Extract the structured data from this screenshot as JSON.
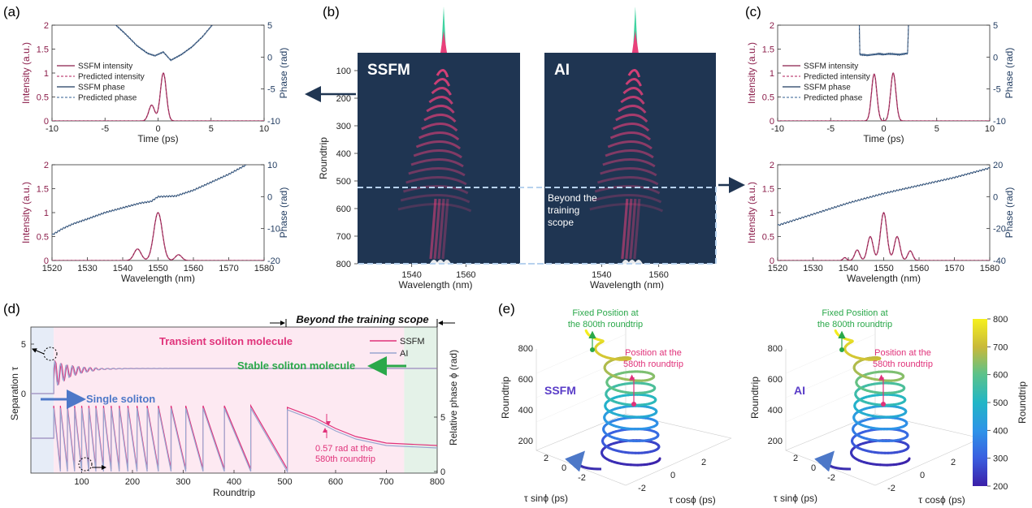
{
  "panel_labels": {
    "a": "(a)",
    "b": "(b)",
    "c": "(c)",
    "d": "(d)",
    "e": "(e)"
  },
  "colors": {
    "intensity": "#8b1d4a",
    "phase": "#1f3a5f",
    "ssfm": "#e0327a",
    "ai": "#9aa6d0",
    "heatmap_bg": "#1f3552",
    "pulse": "#e8407a",
    "dash": "#b7d2ee",
    "pink_bg": "#fde9f2",
    "blue_bg": "#e6ecf7",
    "green_bg": "#e4f2e8",
    "green": "#2aa84a",
    "arrow": "#1f3552"
  },
  "chart_data": [
    {
      "id": "a-top",
      "type": "line",
      "xlabel": "Time (ps)",
      "ylabel": "Intensity (a.u.)",
      "y2label": "Phase (rad)",
      "xlim": [
        -10,
        10
      ],
      "ylim": [
        0,
        2
      ],
      "y2lim": [
        -10,
        5
      ],
      "xticks": [
        "-10",
        "-5",
        "0",
        "5",
        "10"
      ],
      "yticks": [
        "0",
        "0.5",
        "1",
        "1.5",
        "2"
      ],
      "y2ticks": [
        "-10",
        "-5",
        "0",
        "5"
      ],
      "legend": [
        "SSFM intensity",
        "Predicted intensity",
        "SSFM phase",
        "Predicted phase"
      ],
      "pulses": [
        {
          "center": -0.6,
          "amp": 0.33,
          "width": 0.28
        },
        {
          "center": 0.5,
          "amp": 1.0,
          "width": 0.28
        }
      ],
      "phase_curve": [
        [
          -4.1,
          5.2
        ],
        [
          -3,
          3.5
        ],
        [
          -2,
          1.8
        ],
        [
          -1,
          0.6
        ],
        [
          -0.3,
          0.2
        ],
        [
          0.5,
          0.8
        ],
        [
          1.2,
          -0.5
        ],
        [
          2.2,
          0.4
        ],
        [
          3.2,
          1.6
        ],
        [
          4.2,
          3.2
        ],
        [
          5.2,
          5.2
        ]
      ]
    },
    {
      "id": "a-bottom",
      "type": "line",
      "xlabel": "Wavelength (nm)",
      "ylabel": "Intensity (a.u.)",
      "y2label": "Phase (rad)",
      "xlim": [
        1520,
        1580
      ],
      "ylim": [
        0,
        2
      ],
      "y2lim": [
        -20,
        10
      ],
      "xticks": [
        "1520",
        "1530",
        "1540",
        "1550",
        "1560",
        "1570",
        "1580"
      ],
      "yticks": [
        "0",
        "0.5",
        "1",
        "1.5",
        "2"
      ],
      "y2ticks": [
        "-20",
        "-10",
        "0",
        "10"
      ],
      "spectrum": [
        {
          "center": 1550,
          "amp": 1.0,
          "width": 1.2
        },
        {
          "center": 1544.2,
          "amp": 0.24,
          "width": 1.0
        },
        {
          "center": 1555.8,
          "amp": 0.12,
          "width": 0.9
        }
      ],
      "phase_curve": [
        [
          1520,
          -12
        ],
        [
          1523,
          -10
        ],
        [
          1526,
          -8.5
        ],
        [
          1530,
          -7
        ],
        [
          1535,
          -5
        ],
        [
          1540,
          -3.5
        ],
        [
          1545,
          -2
        ],
        [
          1548,
          -1.5
        ],
        [
          1550,
          0
        ],
        [
          1555,
          0.2
        ],
        [
          1560,
          2
        ],
        [
          1565,
          4.5
        ],
        [
          1570,
          7
        ],
        [
          1575,
          10
        ]
      ]
    },
    {
      "id": "b",
      "type": "heatmap",
      "ylabel": "Roundtrip",
      "xlabel": "Wavelength (nm)",
      "yticks": [
        "100",
        "200",
        "300",
        "400",
        "500",
        "600",
        "700",
        "800"
      ],
      "xticks": [
        "1540",
        "1560"
      ],
      "panels": [
        "SSFM",
        "AI"
      ],
      "annotation": [
        "Beyond the",
        "training",
        "scope"
      ],
      "ylim": [
        0,
        800
      ],
      "xlim": [
        1520,
        1580
      ]
    },
    {
      "id": "c-top",
      "type": "line",
      "xlabel": "Time (ps)",
      "ylabel": "Intensity (a.u.)",
      "y2label": "Phase (rad)",
      "xlim": [
        -10,
        10
      ],
      "ylim": [
        0,
        2
      ],
      "y2lim": [
        -10,
        5
      ],
      "xticks": [
        "-10",
        "-5",
        "0",
        "5",
        "10"
      ],
      "yticks": [
        "0",
        "0.5",
        "1",
        "1.5",
        "2"
      ],
      "y2ticks": [
        "-10",
        "-5",
        "0",
        "5"
      ],
      "legend": [
        "SSFM intensity",
        "Predicted intensity",
        "SSFM phase",
        "Predicted phase"
      ],
      "pulses": [
        {
          "center": -0.9,
          "amp": 0.98,
          "width": 0.25
        },
        {
          "center": 0.9,
          "amp": 1.0,
          "width": 0.25
        }
      ],
      "phase_curve": [
        [
          -2.3,
          5.5
        ],
        [
          -2.25,
          0.4
        ],
        [
          -1.5,
          0.3
        ],
        [
          -0.5,
          0.5
        ],
        [
          0,
          0.4
        ],
        [
          0.5,
          0.5
        ],
        [
          1.5,
          0.4
        ],
        [
          2.25,
          0.6
        ],
        [
          2.35,
          5.5
        ]
      ]
    },
    {
      "id": "c-bottom",
      "type": "line",
      "xlabel": "Wavelength (nm)",
      "ylabel": "Intensity (a.u.)",
      "y2label": "Phase (rad)",
      "xlim": [
        1520,
        1580
      ],
      "ylim": [
        0,
        2
      ],
      "y2lim": [
        -40,
        20
      ],
      "xticks": [
        "1520",
        "1530",
        "1540",
        "1550",
        "1560",
        "1570",
        "1580"
      ],
      "yticks": [
        "0",
        "0.5",
        "1",
        "1.5",
        "2"
      ],
      "y2ticks": [
        "-40",
        "-20",
        "0",
        "20"
      ],
      "spectrum": [
        {
          "center": 1550,
          "amp": 1.0,
          "width": 0.9
        },
        {
          "center": 1546.2,
          "amp": 0.5,
          "width": 0.8
        },
        {
          "center": 1553.8,
          "amp": 0.5,
          "width": 0.8
        },
        {
          "center": 1542.5,
          "amp": 0.22,
          "width": 0.7
        },
        {
          "center": 1557.5,
          "amp": 0.2,
          "width": 0.7
        },
        {
          "center": 1539,
          "amp": 0.06,
          "width": 0.5
        }
      ],
      "phase_curve": [
        [
          1520,
          -18
        ],
        [
          1530,
          -11
        ],
        [
          1540,
          -4
        ],
        [
          1550,
          2
        ],
        [
          1560,
          7
        ],
        [
          1570,
          12
        ],
        [
          1580,
          18
        ]
      ]
    },
    {
      "id": "d",
      "type": "line",
      "xlabel": "Roundtrip",
      "ylabel": "Separation τ",
      "y2label": "Relative phase ϕ (rad)",
      "xlim": [
        0,
        800
      ],
      "xticks": [
        "100",
        "200",
        "300",
        "400",
        "500",
        "600",
        "700",
        "800"
      ],
      "yticks": [
        "0",
        "5"
      ],
      "y2ticks": [
        "0",
        "5"
      ],
      "legend": [
        "SSFM",
        "AI"
      ],
      "header": "Beyond the training scope",
      "labels": {
        "transient": "Transient soliton molecule",
        "stable": "Stable soliton molecule",
        "single": "Single soliton",
        "note": [
          "0.57 rad at the",
          "580th roundtrip"
        ]
      },
      "regions": [
        {
          "name": "single",
          "from": 0,
          "to": 45
        },
        {
          "name": "transient",
          "from": 45,
          "to": 735
        },
        {
          "name": "stable",
          "from": 735,
          "to": 800
        }
      ]
    },
    {
      "id": "e",
      "type": "scatter",
      "panels": [
        "SSFM",
        "AI"
      ],
      "zlabel": "Roundtrip",
      "xlabel": "τ sinϕ (ps)",
      "ylabel": "τ cosϕ (ps)",
      "zticks": [
        "200",
        "400",
        "600",
        "800"
      ],
      "xticks": [
        "2",
        "0",
        "-2"
      ],
      "yticks": [
        "-2",
        "0",
        "2"
      ],
      "annotations": {
        "fixed": [
          "Fixed Position at",
          "the 800th roundtrip"
        ],
        "pos": [
          "Position at the",
          "580th roundtrip"
        ]
      },
      "colorbar": {
        "label": "Roundtrip",
        "ticks": [
          "200",
          "300",
          "400",
          "500",
          "600",
          "700",
          "800"
        ],
        "range": [
          200,
          800
        ]
      }
    }
  ]
}
